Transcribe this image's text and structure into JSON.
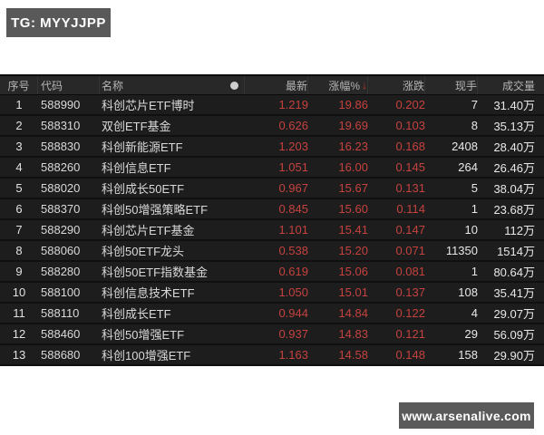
{
  "top_badge": {
    "label": "TG: MYYJJPP"
  },
  "watermark": {
    "label": "www.arsenalive.com"
  },
  "colors": {
    "up_red": "#c5423f",
    "panel_bg": "#1d1d1d",
    "header_bg": "#282828",
    "badge_gray": "#595959"
  },
  "icons": {
    "column_dot": "dot",
    "sort_desc": "↓"
  },
  "table": {
    "headers": {
      "seq": "序号",
      "code": "代码",
      "name": "名称",
      "latest": "最新",
      "pct": "涨幅%",
      "chg": "涨跌",
      "hand": "现手",
      "volume": "成交量"
    },
    "sort": {
      "column": "涨幅%",
      "direction": "desc",
      "arrow": "↓"
    },
    "rows": [
      {
        "seq": "1",
        "code": "588990",
        "name": "科创芯片ETF博时",
        "latest": "1.219",
        "pct": "19.86",
        "chg": "0.202",
        "hand": "7",
        "volume": "31.40万"
      },
      {
        "seq": "2",
        "code": "588310",
        "name": "双创ETF基金",
        "latest": "0.626",
        "pct": "19.69",
        "chg": "0.103",
        "hand": "8",
        "volume": "35.13万"
      },
      {
        "seq": "3",
        "code": "588830",
        "name": "科创新能源ETF",
        "latest": "1.203",
        "pct": "16.23",
        "chg": "0.168",
        "hand": "2408",
        "volume": "28.40万"
      },
      {
        "seq": "4",
        "code": "588260",
        "name": "科创信息ETF",
        "latest": "1.051",
        "pct": "16.00",
        "chg": "0.145",
        "hand": "264",
        "volume": "26.46万"
      },
      {
        "seq": "5",
        "code": "588020",
        "name": "科创成长50ETF",
        "latest": "0.967",
        "pct": "15.67",
        "chg": "0.131",
        "hand": "5",
        "volume": "38.04万"
      },
      {
        "seq": "6",
        "code": "588370",
        "name": "科创50增强策略ETF",
        "latest": "0.845",
        "pct": "15.60",
        "chg": "0.114",
        "hand": "1",
        "volume": "23.68万"
      },
      {
        "seq": "7",
        "code": "588290",
        "name": "科创芯片ETF基金",
        "latest": "1.101",
        "pct": "15.41",
        "chg": "0.147",
        "hand": "10",
        "volume": "112万"
      },
      {
        "seq": "8",
        "code": "588060",
        "name": "科创50ETF龙头",
        "latest": "0.538",
        "pct": "15.20",
        "chg": "0.071",
        "hand": "11350",
        "volume": "1514万"
      },
      {
        "seq": "9",
        "code": "588280",
        "name": "科创50ETF指数基金",
        "latest": "0.619",
        "pct": "15.06",
        "chg": "0.081",
        "hand": "1",
        "volume": "80.64万"
      },
      {
        "seq": "10",
        "code": "588100",
        "name": "科创信息技术ETF",
        "latest": "1.050",
        "pct": "15.01",
        "chg": "0.137",
        "hand": "108",
        "volume": "35.41万"
      },
      {
        "seq": "11",
        "code": "588110",
        "name": "科创成长ETF",
        "latest": "0.944",
        "pct": "14.84",
        "chg": "0.122",
        "hand": "4",
        "volume": "29.07万"
      },
      {
        "seq": "12",
        "code": "588460",
        "name": "科创50增强ETF",
        "latest": "0.937",
        "pct": "14.83",
        "chg": "0.121",
        "hand": "29",
        "volume": "56.09万"
      },
      {
        "seq": "13",
        "code": "588680",
        "name": "科创100增强ETF",
        "latest": "1.163",
        "pct": "14.58",
        "chg": "0.148",
        "hand": "158",
        "volume": "29.90万"
      }
    ]
  }
}
